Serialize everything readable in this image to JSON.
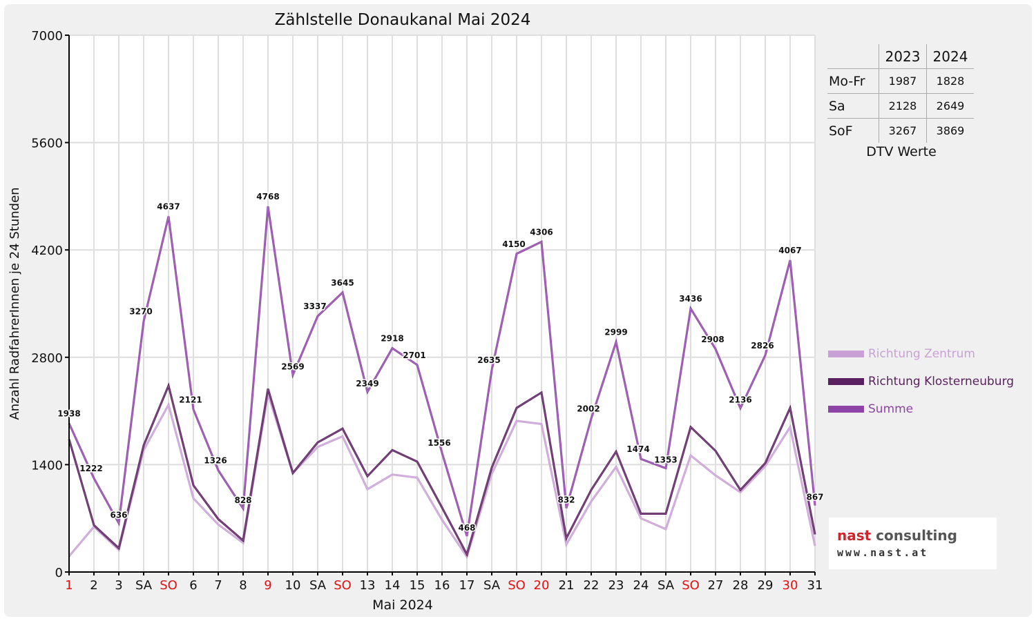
{
  "chart_data": {
    "type": "line",
    "title": "Zählstelle Donaukanal Mai 2024",
    "xlabel": "Mai 2024",
    "ylabel": "Anzahl RadfahrerInnen je 24 Stunden",
    "ylim": [
      0,
      7000
    ],
    "yticks": [
      0,
      1400,
      2800,
      4200,
      5600,
      7000
    ],
    "grid": true,
    "legend_position": "right",
    "categories": [
      "1",
      "2",
      "3",
      "SA",
      "SO",
      "6",
      "7",
      "8",
      "9",
      "10",
      "SA",
      "SO",
      "13",
      "14",
      "15",
      "16",
      "17",
      "SA",
      "SO",
      "20",
      "21",
      "22",
      "23",
      "24",
      "SA",
      "SO",
      "27",
      "28",
      "29",
      "30",
      "31"
    ],
    "red_categories": [
      0,
      4,
      8,
      11,
      18,
      19,
      25,
      29
    ],
    "series": [
      {
        "name": "Richtung Zentrum",
        "color": "#c9a0d6",
        "values": [
          205,
          590,
          290,
          1590,
          2180,
          960,
          620,
          380,
          2320,
          1290,
          1630,
          1770,
          1080,
          1270,
          1230,
          680,
          200,
          1280,
          1970,
          1930,
          360,
          920,
          1370,
          700,
          560,
          1520,
          1260,
          1040,
          1380,
          1890,
          340
        ]
      },
      {
        "name": "Richtung Klosterneuburg",
        "color": "#5a1f5e",
        "values": [
          1730,
          610,
          310,
          1650,
          2430,
          1130,
          690,
          410,
          2390,
          1290,
          1690,
          1870,
          1250,
          1590,
          1440,
          840,
          230,
          1360,
          2140,
          2340,
          440,
          1070,
          1570,
          760,
          760,
          1890,
          1580,
          1070,
          1420,
          2140,
          490
        ]
      },
      {
        "name": "Summe",
        "color": "#8e44a6",
        "values": [
          1938,
          1222,
          636,
          3270,
          4637,
          2121,
          1326,
          828,
          4768,
          2569,
          3337,
          3645,
          2349,
          2918,
          2701,
          1556,
          468,
          2635,
          4150,
          4306,
          832,
          2002,
          2999,
          1474,
          1353,
          3436,
          2908,
          2136,
          2826,
          4067,
          867
        ]
      }
    ]
  },
  "dtv": {
    "caption": "DTV Werte",
    "col_2023": "2023",
    "col_2024": "2024",
    "rows": [
      {
        "label": "Mo-Fr",
        "y2023": "1987",
        "y2024": "1828"
      },
      {
        "label": "Sa",
        "y2023": "2128",
        "y2024": "2649"
      },
      {
        "label": "SoF",
        "y2023": "3267",
        "y2024": "3869"
      }
    ]
  },
  "logo": {
    "brand_a": "nast",
    "brand_b": " consulting",
    "url": "www.nast.at"
  }
}
